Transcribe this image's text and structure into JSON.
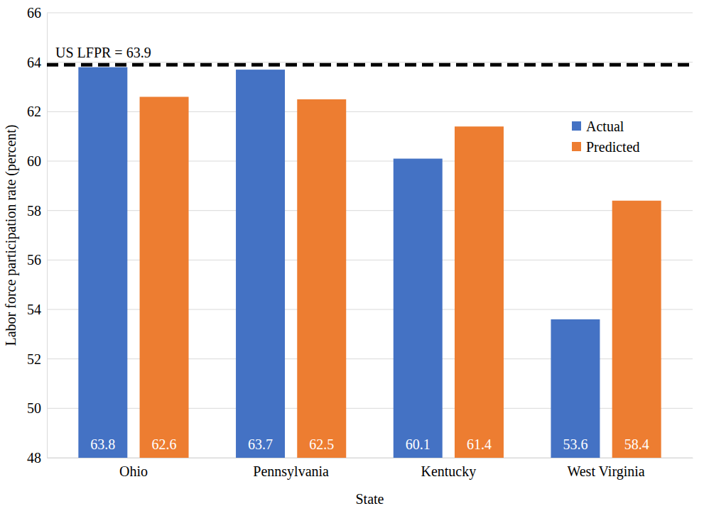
{
  "chart_data": {
    "type": "bar",
    "x_label": "State",
    "y_label": "Labor force participation rate (percent)",
    "categories": [
      "Ohio",
      "Pennsylvania",
      "Kentucky",
      "West Virginia"
    ],
    "series": [
      {
        "name": "Actual",
        "color": "#4472c4",
        "values": [
          63.8,
          63.7,
          60.1,
          53.6
        ]
      },
      {
        "name": "Predicted",
        "color": "#ed7d31",
        "values": [
          62.6,
          62.5,
          61.4,
          58.4
        ]
      }
    ],
    "ylim": [
      48,
      66
    ],
    "yticks": [
      48,
      50,
      52,
      54,
      56,
      58,
      60,
      62,
      64,
      66
    ],
    "grid": true,
    "legend": "right",
    "data_labels": true,
    "reference_line": {
      "value": 63.9,
      "label": "US LFPR = 63.9",
      "color": "#000000",
      "line_style": "dashed"
    }
  }
}
